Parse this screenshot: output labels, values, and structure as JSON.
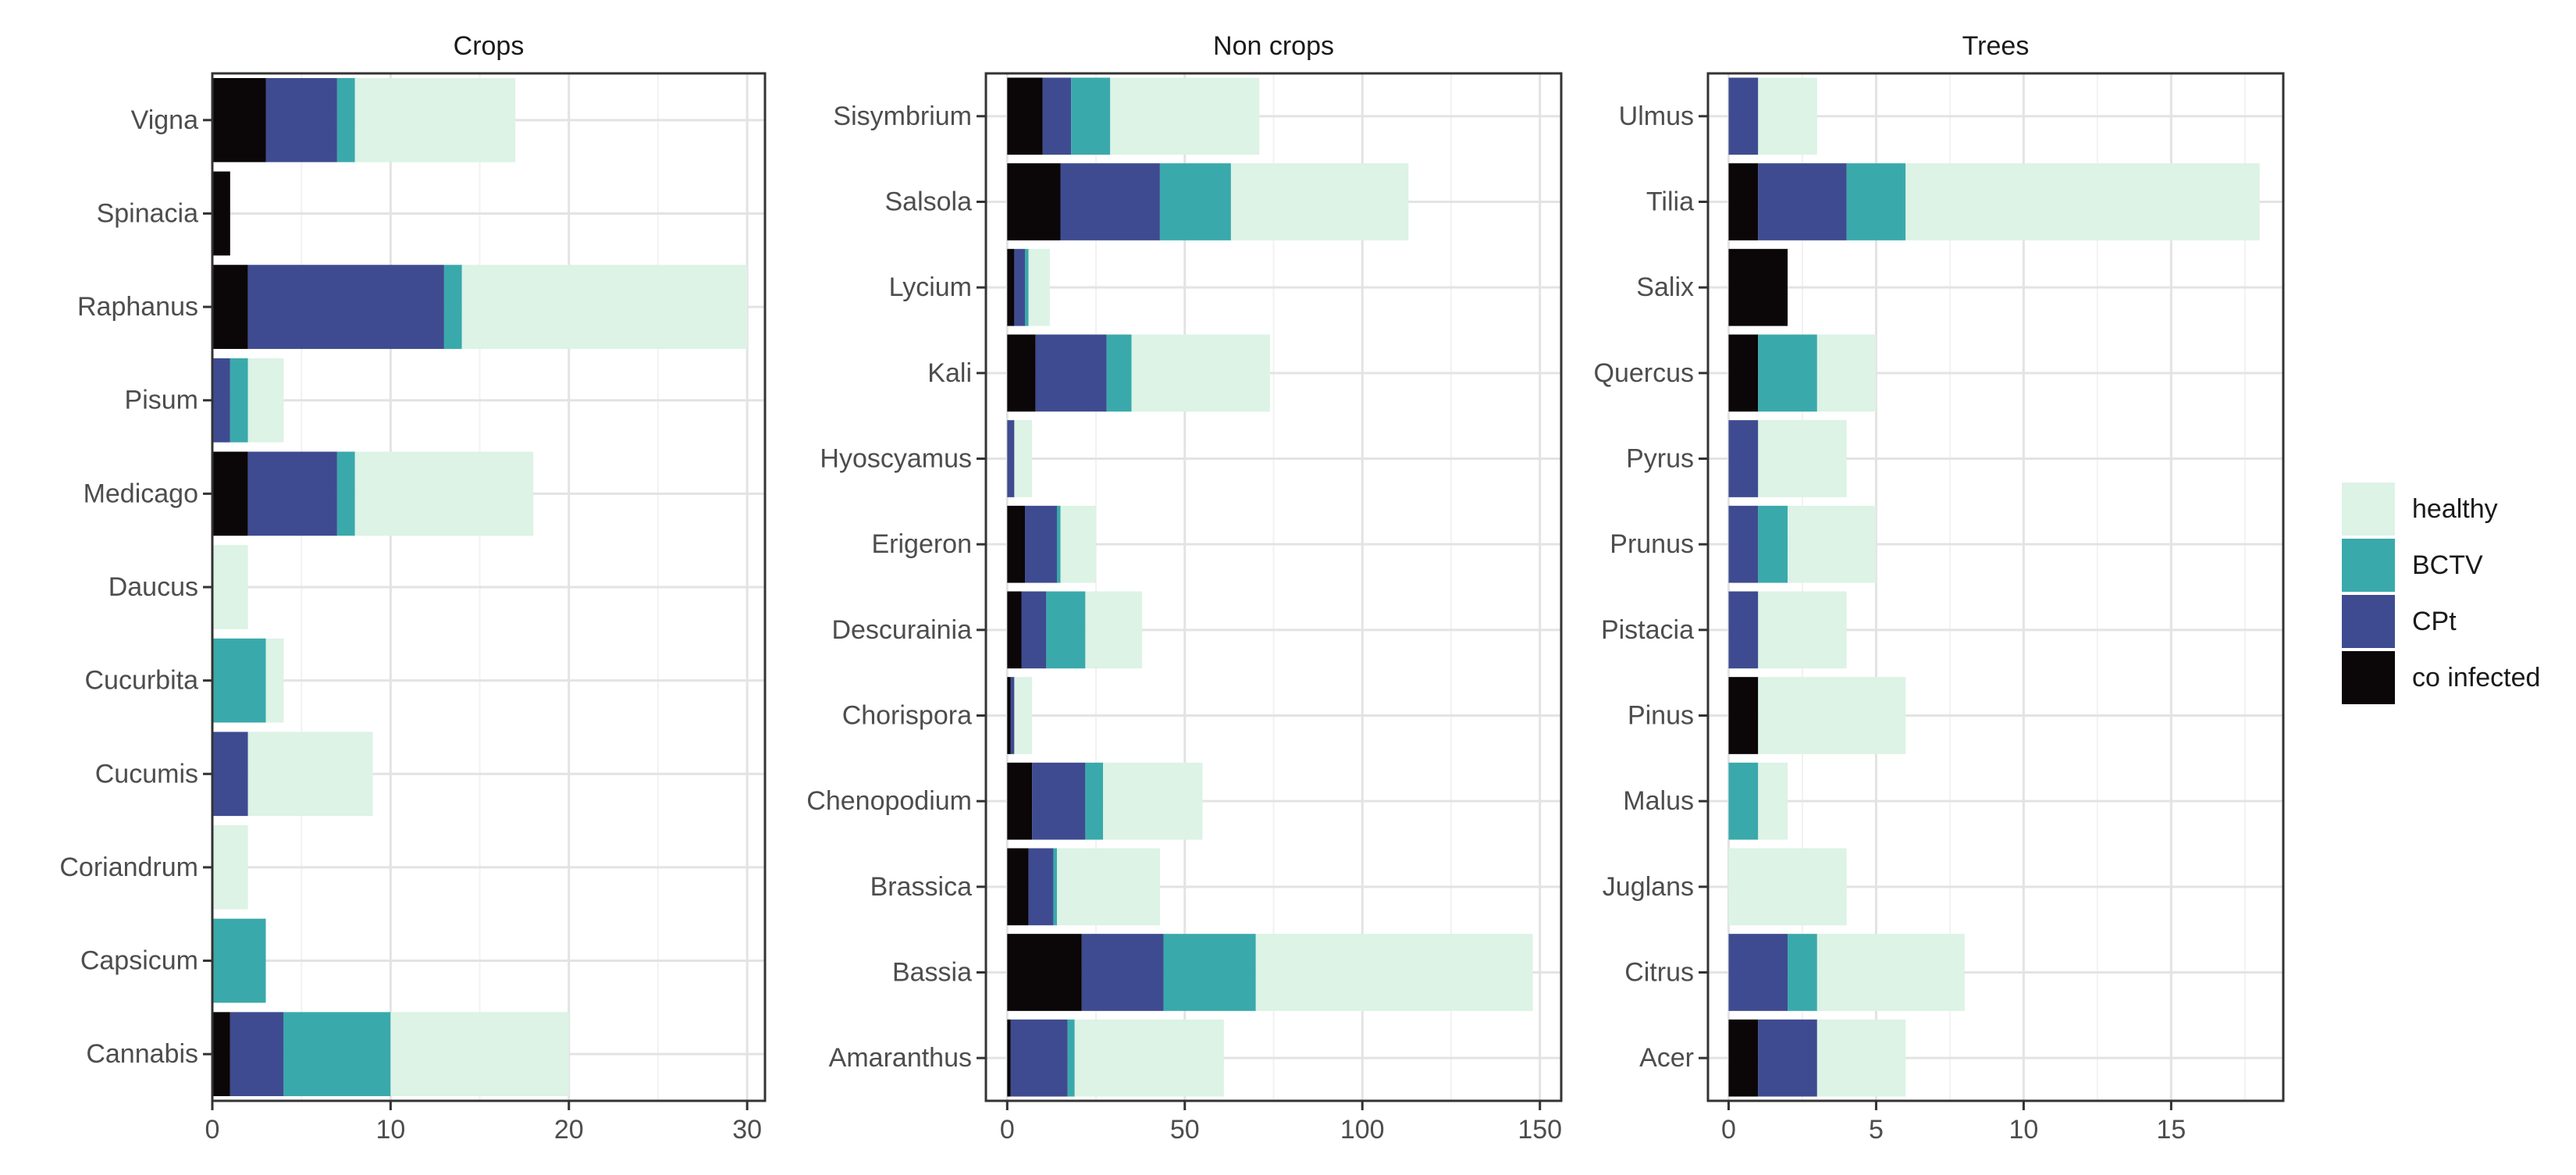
{
  "legend": {
    "position": "right",
    "items": [
      {
        "label": "healthy",
        "color": "#dcf3e5"
      },
      {
        "label": "BCTV",
        "color": "#3aa9ab"
      },
      {
        "label": "CPt",
        "color": "#3f4b90"
      },
      {
        "label": "co infected",
        "color": "#0b0608"
      }
    ]
  },
  "chart_data": [
    {
      "type": "bar",
      "orientation": "horizontal",
      "stacked": true,
      "title": "Crops",
      "categories": [
        "Vigna",
        "Spinacia",
        "Raphanus",
        "Pisum",
        "Medicago",
        "Daucus",
        "Cucurbita",
        "Cucumis",
        "Coriandrum",
        "Capsicum",
        "Cannabis"
      ],
      "series": [
        {
          "name": "co infected",
          "values": [
            3,
            1,
            2,
            0,
            2,
            0,
            0,
            0,
            0,
            0,
            1
          ]
        },
        {
          "name": "CPt",
          "values": [
            4,
            0,
            11,
            1,
            5,
            0,
            0,
            2,
            0,
            0,
            3
          ]
        },
        {
          "name": "BCTV",
          "values": [
            1,
            0,
            1,
            1,
            1,
            0,
            3,
            0,
            0,
            3,
            6
          ]
        },
        {
          "name": "healthy",
          "values": [
            9,
            0,
            16,
            2,
            10,
            2,
            1,
            7,
            2,
            0,
            10
          ]
        }
      ],
      "xlim": [
        0,
        31
      ],
      "xticks": [
        0,
        10,
        20,
        30
      ],
      "grid": true
    },
    {
      "type": "bar",
      "orientation": "horizontal",
      "stacked": true,
      "title": "Non crops",
      "categories": [
        "Sisymbrium",
        "Salsola",
        "Lycium",
        "Kali",
        "Hyoscyamus",
        "Erigeron",
        "Descurainia",
        "Chorispora",
        "Chenopodium",
        "Brassica",
        "Bassia",
        "Amaranthus"
      ],
      "series": [
        {
          "name": "co infected",
          "values": [
            10,
            15,
            2,
            8,
            0,
            5,
            4,
            1,
            7,
            6,
            21,
            1
          ]
        },
        {
          "name": "CPt",
          "values": [
            8,
            28,
            3,
            20,
            2,
            9,
            7,
            1,
            15,
            7,
            23,
            16
          ]
        },
        {
          "name": "BCTV",
          "values": [
            11,
            20,
            1,
            7,
            0,
            1,
            11,
            0,
            5,
            1,
            26,
            2
          ]
        },
        {
          "name": "healthy",
          "values": [
            42,
            50,
            6,
            39,
            5,
            10,
            16,
            5,
            28,
            29,
            78,
            42
          ]
        }
      ],
      "xlim": [
        -6,
        156
      ],
      "xticks": [
        0,
        50,
        100,
        150
      ],
      "grid": true
    },
    {
      "type": "bar",
      "orientation": "horizontal",
      "stacked": true,
      "title": "Trees",
      "categories": [
        "Ulmus",
        "Tilia",
        "Salix",
        "Quercus",
        "Pyrus",
        "Prunus",
        "Pistacia",
        "Pinus",
        "Malus",
        "Juglans",
        "Citrus",
        "Acer"
      ],
      "series": [
        {
          "name": "co infected",
          "values": [
            0,
            1,
            2,
            1,
            0,
            0,
            0,
            1,
            0,
            0,
            0,
            1
          ]
        },
        {
          "name": "CPt",
          "values": [
            1,
            3,
            0,
            0,
            1,
            1,
            1,
            0,
            0,
            0,
            2,
            2
          ]
        },
        {
          "name": "BCTV",
          "values": [
            0,
            2,
            0,
            2,
            0,
            1,
            0,
            0,
            1,
            0,
            1,
            0
          ]
        },
        {
          "name": "healthy",
          "values": [
            2,
            12,
            0,
            2,
            3,
            3,
            3,
            5,
            1,
            4,
            5,
            3
          ]
        }
      ],
      "xlim": [
        -0.7,
        18.8
      ],
      "xticks": [
        0,
        5,
        10,
        15
      ],
      "grid": true
    }
  ]
}
